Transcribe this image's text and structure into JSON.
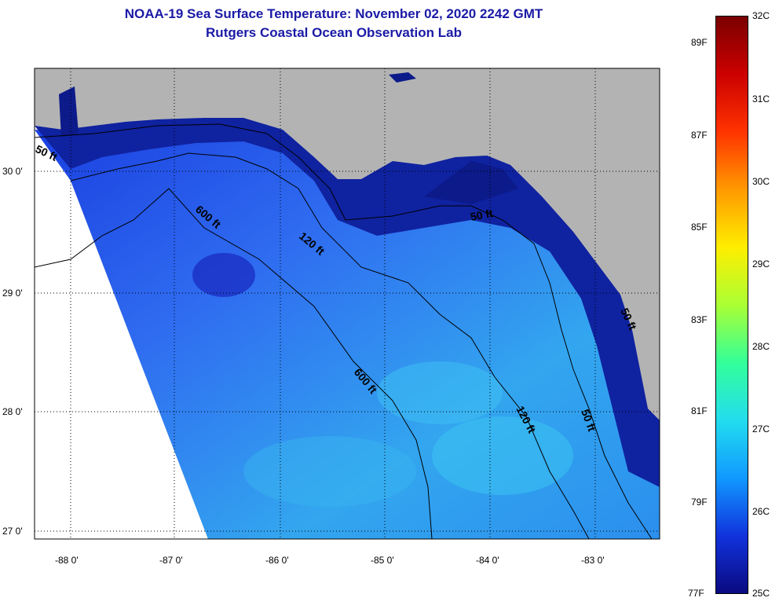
{
  "header": {
    "title": "NOAA-19 Sea Surface Temperature:  November 02, 2020 2242 GMT",
    "subtitle": "Rutgers Coastal Ocean Observation Lab"
  },
  "map": {
    "lat_labels": [
      "30 0'",
      "29 0'",
      "28 0'",
      "27 0'"
    ],
    "lon_labels": [
      "-88 0'",
      "-87 0'",
      "-86 0'",
      "-85 0'",
      "-84 0'",
      "-83 0'"
    ],
    "contour_labels": [
      "50 ft",
      "600 ft",
      "120 ft",
      "50 ft",
      "600 ft",
      "120 ft",
      "50 ft",
      "50 ft"
    ]
  },
  "colorbar": {
    "celsius_labels": [
      "32C",
      "31C",
      "30C",
      "29C",
      "28C",
      "27C",
      "26C",
      "25C"
    ],
    "fahrenheit_labels": [
      "89F",
      "87F",
      "85F",
      "83F",
      "81F",
      "79F",
      "77F"
    ],
    "colors": [
      "#7a0000",
      "#cc0000",
      "#ff3300",
      "#ff9900",
      "#ffee00",
      "#aaff33",
      "#33ff99",
      "#22ddee",
      "#1199ff",
      "#1133dd",
      "#0a0a80"
    ]
  }
}
